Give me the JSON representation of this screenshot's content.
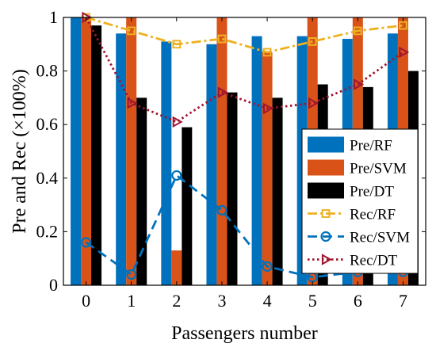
{
  "chart_data": {
    "type": "bar",
    "xlabel": "Passengers number",
    "ylabel": "Pre and Rec (×100%)",
    "categories": [
      "0",
      "1",
      "2",
      "3",
      "4",
      "5",
      "6",
      "7"
    ],
    "ylim": [
      0,
      1
    ],
    "yticks": [
      "0",
      "0.2",
      "0.4",
      "0.6",
      "0.8",
      "1"
    ],
    "grid": false,
    "legend_position": "right",
    "bar_series": [
      {
        "name": "Pre/RF",
        "color": "#0072BD",
        "values": [
          1.0,
          0.94,
          0.91,
          0.9,
          0.93,
          0.93,
          0.92,
          0.94
        ]
      },
      {
        "name": "Pre/SVM",
        "color": "#D95319",
        "values": [
          1.0,
          1.0,
          0.13,
          1.0,
          0.87,
          1.0,
          1.0,
          1.0
        ]
      },
      {
        "name": "Pre/DT",
        "color": "#000000",
        "values": [
          0.97,
          0.7,
          0.59,
          0.72,
          0.7,
          0.75,
          0.74,
          0.8
        ]
      }
    ],
    "line_series": [
      {
        "name": "Rec/RF",
        "color": "#EDB120",
        "marker": "square",
        "dash": "dashdot",
        "values": [
          1.0,
          0.95,
          0.9,
          0.92,
          0.87,
          0.91,
          0.95,
          0.97
        ]
      },
      {
        "name": "Rec/SVM",
        "color": "#0072BD",
        "marker": "circle",
        "dash": "dashed",
        "values": [
          0.16,
          0.04,
          0.41,
          0.28,
          0.07,
          0.03,
          0.05,
          0.05
        ]
      },
      {
        "name": "Rec/DT",
        "color": "#A2142F",
        "marker": "triangle-right",
        "dash": "dotted",
        "values": [
          1.0,
          0.68,
          0.61,
          0.72,
          0.66,
          0.68,
          0.75,
          0.87
        ]
      }
    ]
  }
}
